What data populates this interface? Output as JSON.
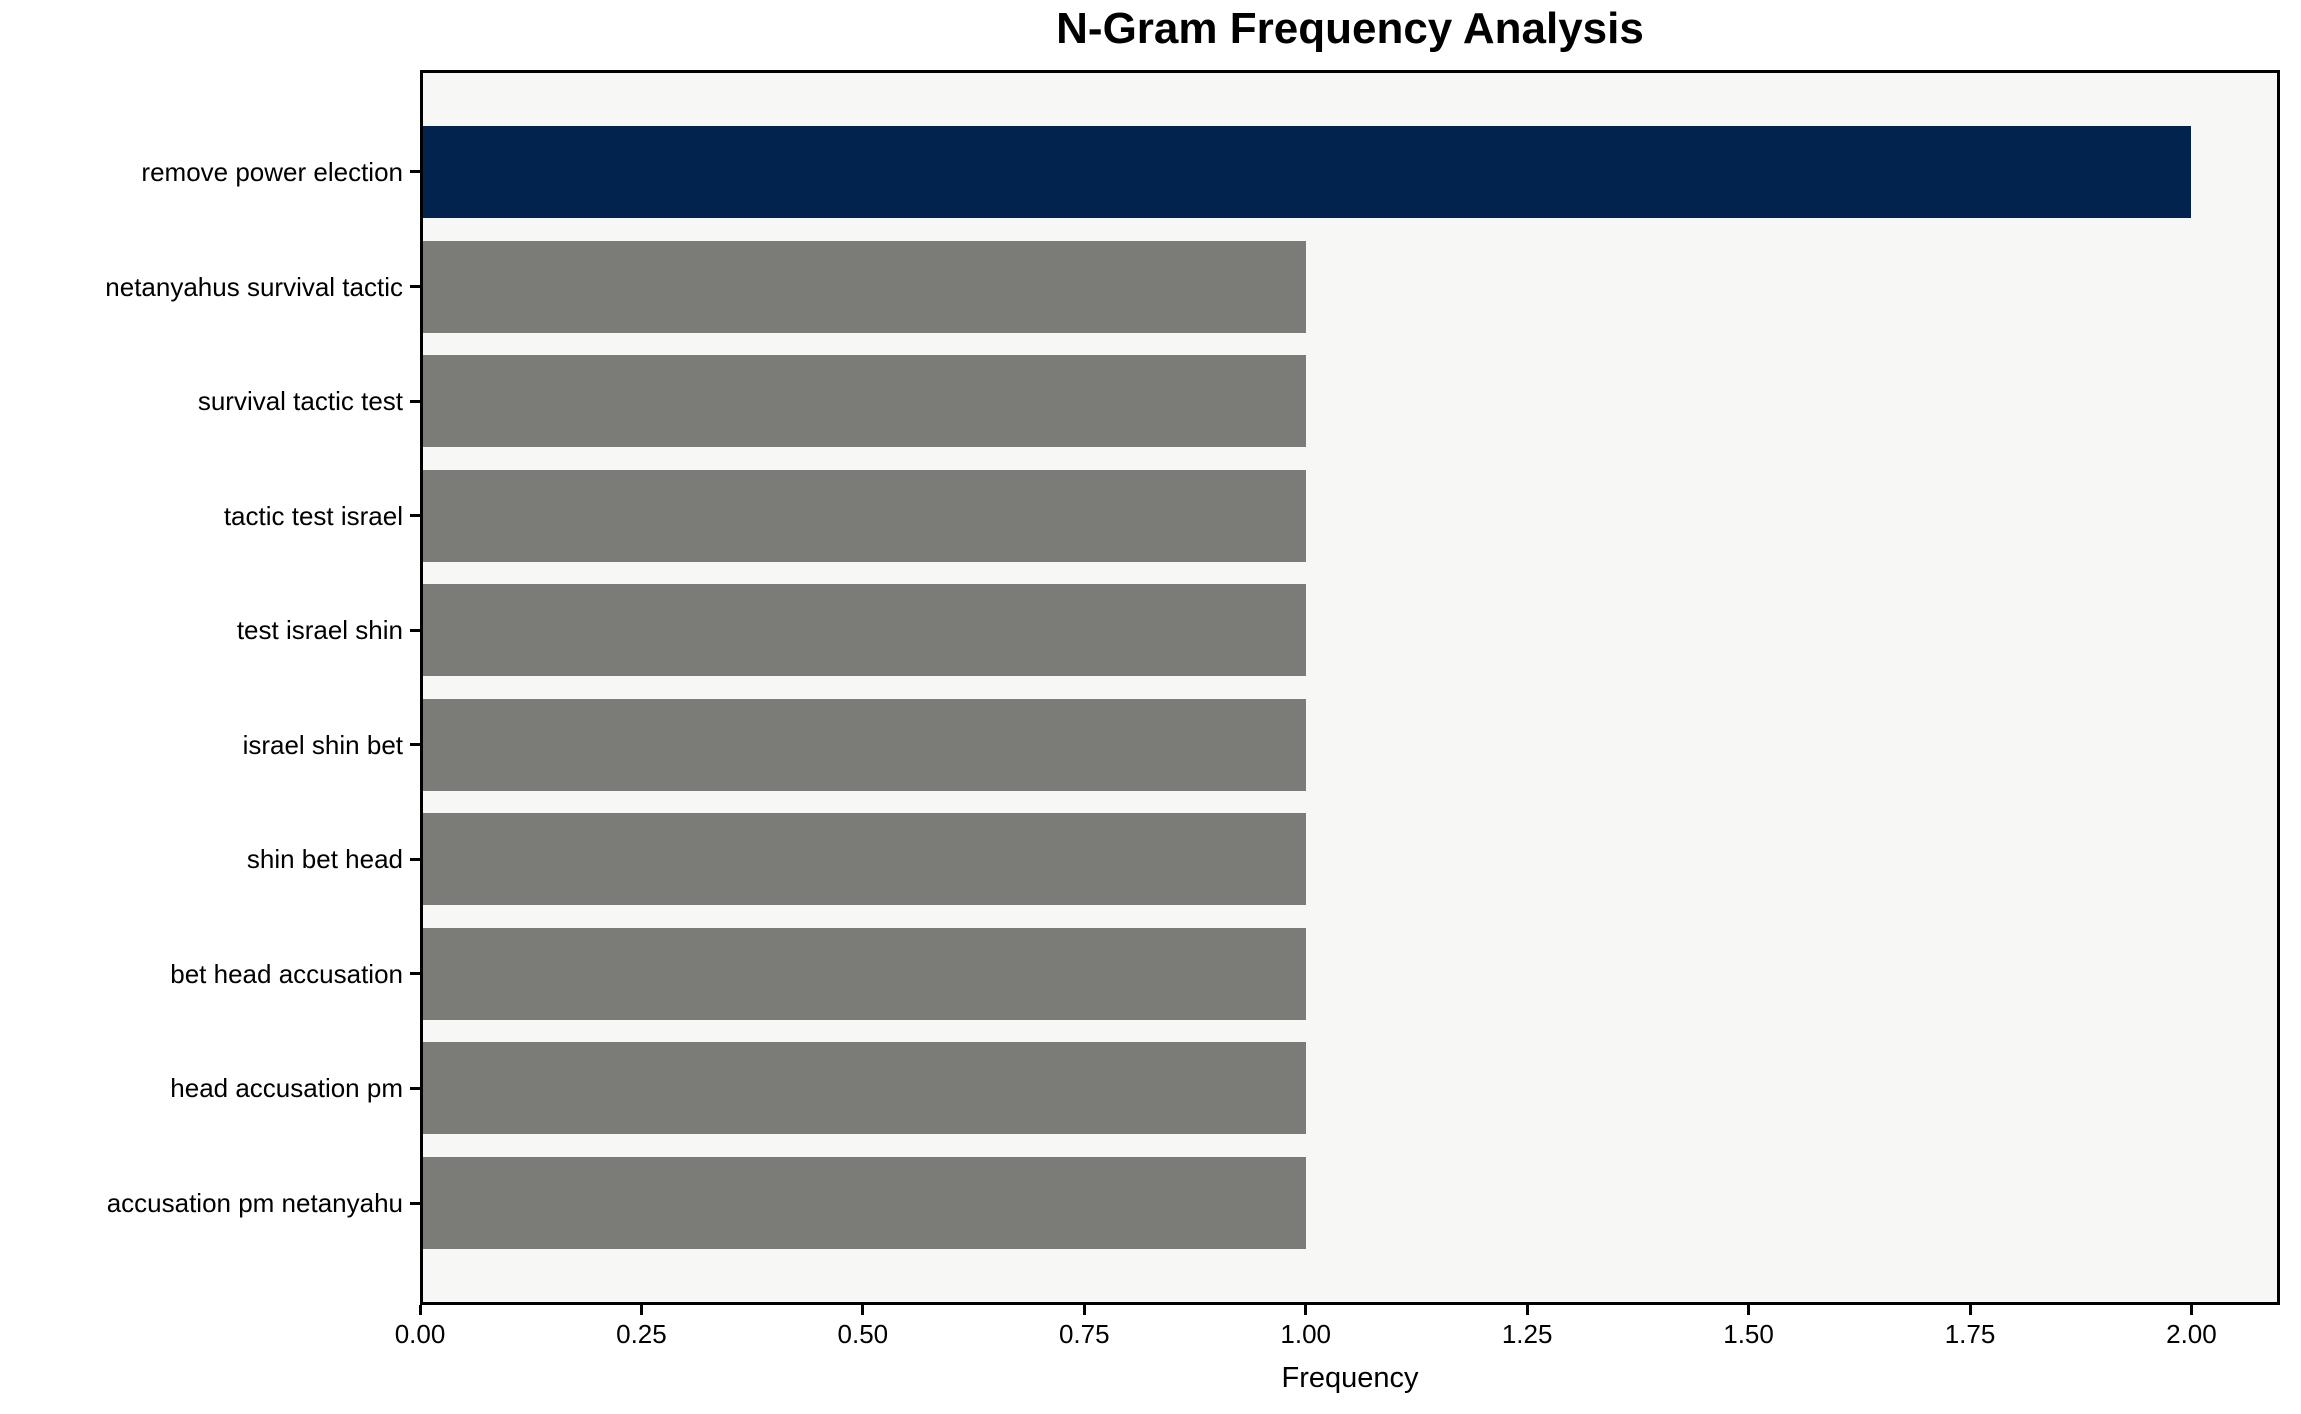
{
  "chart_data": {
    "type": "bar",
    "orientation": "horizontal",
    "title": "N-Gram Frequency Analysis",
    "xlabel": "Frequency",
    "ylabel": "",
    "categories": [
      "remove power election",
      "netanyahus survival tactic",
      "survival tactic test",
      "tactic test israel",
      "test israel shin",
      "israel shin bet",
      "shin bet head",
      "bet head accusation",
      "head accusation pm",
      "accusation pm netanyahu"
    ],
    "values": [
      2,
      1,
      1,
      1,
      1,
      1,
      1,
      1,
      1,
      1
    ],
    "bar_colors": [
      "#02234d",
      "#7b7b77",
      "#7b7b77",
      "#7b7b77",
      "#7b7b77",
      "#7b7b77",
      "#7b7b77",
      "#7b7b77",
      "#7b7b77",
      "#7b7b77"
    ],
    "xlim": [
      0,
      2.1
    ],
    "x_ticks": [
      0,
      0.25,
      0.5,
      0.75,
      1,
      1.25,
      1.5,
      1.75,
      2
    ],
    "x_tick_labels": [
      "0.00",
      "0.25",
      "0.50",
      "0.75",
      "1.00",
      "1.25",
      "1.50",
      "1.75",
      "2.00"
    ],
    "grid": false,
    "legend": null,
    "colors": {
      "highlight_bar": "#02234d",
      "default_bar": "#7b7b77",
      "plot_background": "#f7f7f5",
      "figure_background": "#ffffff",
      "spine": "#000000",
      "text": "#000000"
    }
  }
}
